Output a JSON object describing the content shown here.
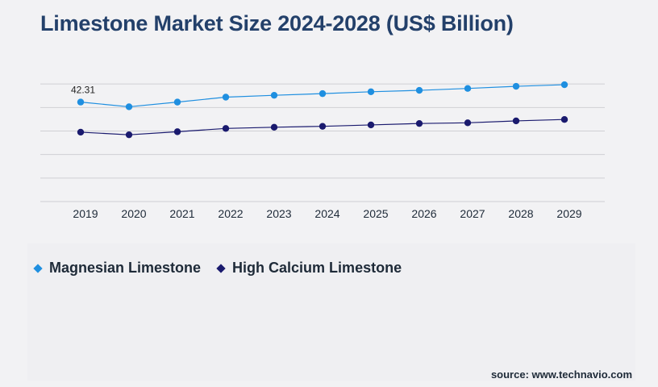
{
  "title": "Limestone Market Size 2024-2028 (US$ Billion)",
  "source": "source: www.technavio.com",
  "chart_data": {
    "type": "line",
    "x": [
      "2019",
      "2020",
      "2021",
      "2022",
      "2023",
      "2024",
      "2025",
      "2026",
      "2027",
      "2028",
      "2029"
    ],
    "series": [
      {
        "name": "Magnesian Limestone",
        "color": "#1f8fe0",
        "values": [
          42.31,
          40.3,
          42.3,
          44.4,
          45.2,
          45.9,
          46.7,
          47.3,
          48.1,
          49.0,
          49.7
        ]
      },
      {
        "name": "High Calcium Limestone",
        "color": "#1a1a6e",
        "values": [
          29.5,
          28.4,
          29.7,
          31.1,
          31.6,
          32.0,
          32.6,
          33.2,
          33.5,
          34.3,
          34.9
        ]
      }
    ],
    "data_labels": [
      {
        "series": 0,
        "index": 0,
        "text": "42.31"
      }
    ],
    "ylim": [
      0,
      60
    ],
    "grid": true,
    "grid_color": "#cfcfd4",
    "legend_placement": "bottom-left"
  }
}
